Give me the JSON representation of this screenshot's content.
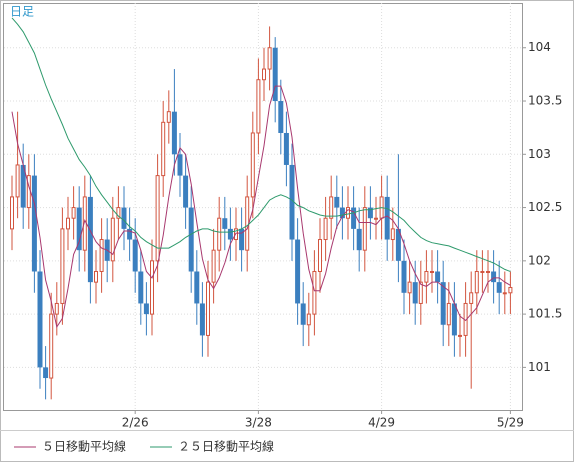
{
  "chart_data": {
    "type": "candlestick",
    "title": "日足",
    "categories": [
      null,
      null,
      null,
      null,
      null,
      null,
      null,
      null,
      null,
      null,
      null,
      null,
      null,
      null,
      null,
      null,
      null,
      null,
      null,
      null,
      null,
      null,
      "2/26",
      null,
      null,
      null,
      null,
      null,
      null,
      null,
      null,
      null,
      null,
      null,
      null,
      null,
      null,
      null,
      null,
      null,
      null,
      null,
      null,
      null,
      "3/28",
      null,
      null,
      null,
      null,
      null,
      null,
      null,
      null,
      null,
      null,
      null,
      null,
      null,
      null,
      null,
      null,
      null,
      null,
      null,
      null,
      null,
      "4/29",
      null,
      null,
      null,
      null,
      null,
      null,
      null,
      null,
      null,
      null,
      null,
      null,
      null,
      null,
      null,
      null,
      null,
      null,
      null,
      null,
      null,
      null,
      "5/29"
    ],
    "open": [
      102.3,
      102.6,
      102.9,
      102.5,
      102.8,
      101.9,
      101.0,
      100.9,
      101.5,
      101.6,
      102.3,
      102.4,
      102.5,
      102.1,
      102.6,
      101.8,
      101.9,
      102.2,
      102.0,
      102.4,
      102.5,
      102.3,
      102.2,
      101.9,
      101.6,
      101.5,
      102.0,
      102.8,
      103.3,
      103.4,
      103.0,
      102.8,
      102.5,
      101.9,
      101.6,
      101.3,
      101.8,
      102.1,
      102.4,
      102.3,
      102.2,
      102.3,
      102.1,
      102.6,
      103.2,
      103.7,
      103.8,
      104.0,
      103.5,
      103.2,
      102.9,
      102.2,
      101.6,
      101.4,
      101.5,
      101.9,
      102.2,
      102.4,
      102.6,
      102.5,
      102.4,
      102.5,
      102.3,
      102.1,
      102.5,
      102.4,
      102.4,
      102.6,
      102.2,
      102.3,
      102.0,
      101.7,
      101.8,
      101.6,
      101.8,
      101.9,
      101.9,
      101.8,
      101.4,
      101.6,
      101.3,
      101.3,
      101.6,
      101.7,
      101.9,
      101.9,
      101.9,
      101.8,
      101.7,
      101.7
    ],
    "high": [
      102.8,
      103.4,
      103.1,
      103.0,
      103.0,
      102.1,
      101.2,
      101.7,
      101.8,
      102.5,
      102.6,
      102.7,
      102.7,
      102.8,
      102.8,
      102.1,
      102.4,
      102.4,
      102.6,
      102.7,
      102.7,
      102.5,
      102.4,
      102.1,
      101.8,
      102.2,
      103.0,
      103.5,
      103.6,
      103.8,
      103.2,
      103.0,
      102.7,
      102.1,
      101.8,
      102.0,
      102.3,
      102.6,
      102.6,
      102.5,
      102.5,
      102.5,
      102.8,
      103.4,
      103.9,
      104.0,
      104.2,
      104.1,
      103.7,
      103.4,
      103.1,
      102.4,
      101.8,
      101.7,
      102.1,
      102.4,
      102.6,
      102.8,
      102.8,
      102.7,
      102.7,
      102.7,
      102.5,
      102.7,
      102.7,
      102.6,
      102.8,
      102.8,
      102.5,
      103.0,
      102.2,
      102.0,
      102.0,
      102.0,
      102.1,
      102.1,
      102.1,
      102.0,
      101.8,
      101.8,
      101.5,
      101.8,
      101.9,
      102.1,
      102.1,
      102.1,
      102.1,
      102.0,
      101.9,
      101.9
    ],
    "low": [
      102.1,
      102.4,
      102.3,
      102.3,
      101.7,
      100.8,
      100.7,
      100.7,
      101.3,
      101.4,
      102.1,
      102.2,
      101.9,
      101.9,
      101.6,
      101.6,
      101.7,
      101.8,
      101.8,
      102.2,
      102.1,
      102.0,
      101.7,
      101.4,
      101.3,
      101.3,
      101.8,
      102.6,
      103.1,
      102.8,
      102.6,
      102.3,
      101.7,
      101.4,
      101.1,
      101.1,
      101.6,
      101.9,
      102.1,
      102.0,
      102.0,
      101.9,
      101.9,
      102.4,
      103.0,
      103.5,
      103.6,
      103.3,
      103.0,
      102.7,
      102.0,
      101.4,
      101.2,
      101.2,
      101.3,
      101.7,
      102.0,
      102.2,
      102.3,
      102.2,
      102.2,
      102.1,
      101.9,
      101.9,
      102.2,
      102.2,
      102.2,
      102.0,
      102.0,
      101.8,
      101.5,
      101.5,
      101.4,
      101.4,
      101.6,
      101.7,
      101.6,
      101.2,
      101.2,
      101.1,
      101.1,
      101.1,
      100.8,
      101.5,
      101.7,
      101.7,
      101.6,
      101.5,
      101.5,
      101.5
    ],
    "close": [
      102.6,
      102.9,
      102.5,
      102.8,
      101.9,
      101.0,
      100.9,
      101.5,
      101.6,
      102.3,
      102.4,
      102.5,
      102.1,
      102.6,
      101.8,
      101.9,
      102.2,
      102.0,
      102.4,
      102.5,
      102.3,
      102.2,
      101.9,
      101.6,
      101.5,
      102.0,
      102.8,
      103.3,
      103.4,
      103.0,
      102.8,
      102.5,
      101.9,
      101.6,
      101.3,
      101.8,
      102.1,
      102.4,
      102.3,
      102.2,
      102.3,
      102.1,
      102.6,
      103.2,
      103.7,
      103.8,
      104.0,
      103.5,
      103.2,
      102.9,
      102.2,
      101.6,
      101.4,
      101.5,
      101.9,
      102.2,
      102.4,
      102.6,
      102.5,
      102.4,
      102.5,
      102.3,
      102.1,
      102.5,
      102.4,
      102.4,
      102.6,
      102.2,
      102.3,
      102.0,
      101.7,
      101.8,
      101.6,
      101.8,
      101.9,
      101.9,
      101.8,
      101.4,
      101.6,
      101.3,
      101.3,
      101.6,
      101.7,
      101.9,
      101.9,
      101.9,
      101.8,
      101.7,
      101.7,
      101.75
    ],
    "up_color": "#d2553f",
    "down_color": "#3b7fbf",
    "lines": [
      {
        "name": "５日移動平均線",
        "color": "#a8386e",
        "values": [
          103.4,
          103.1,
          102.9,
          102.7,
          102.54,
          102.22,
          101.82,
          101.62,
          101.38,
          101.46,
          101.74,
          102.06,
          102.18,
          102.38,
          102.28,
          102.18,
          102.12,
          102.1,
          102.06,
          102.2,
          102.28,
          102.28,
          102.26,
          102.1,
          101.9,
          101.84,
          101.96,
          102.24,
          102.6,
          102.9,
          103.06,
          103.0,
          102.72,
          102.36,
          102.02,
          101.82,
          101.74,
          101.84,
          101.98,
          102.16,
          102.26,
          102.26,
          102.3,
          102.48,
          102.78,
          103.08,
          103.46,
          103.64,
          103.64,
          103.48,
          103.16,
          102.68,
          102.26,
          101.92,
          101.72,
          101.72,
          101.88,
          102.12,
          102.32,
          102.42,
          102.48,
          102.46,
          102.36,
          102.36,
          102.36,
          102.34,
          102.4,
          102.42,
          102.38,
          102.3,
          102.16,
          102.0,
          101.88,
          101.78,
          101.76,
          101.8,
          101.8,
          101.76,
          101.72,
          101.6,
          101.48,
          101.44,
          101.5,
          101.56,
          101.68,
          101.8,
          101.84,
          101.84,
          101.8,
          101.77
        ]
      },
      {
        "name": "２５日移動平均線",
        "color": "#2e9a6c",
        "values": [
          104.28,
          104.22,
          104.15,
          104.05,
          103.95,
          103.8,
          103.65,
          103.52,
          103.4,
          103.28,
          103.15,
          103.05,
          102.95,
          102.88,
          102.8,
          102.7,
          102.62,
          102.55,
          102.48,
          102.42,
          102.38,
          102.32,
          102.28,
          102.22,
          102.18,
          102.15,
          102.12,
          102.12,
          102.12,
          102.15,
          102.18,
          102.22,
          102.25,
          102.28,
          102.3,
          102.3,
          102.28,
          102.27,
          102.27,
          102.27,
          102.28,
          102.3,
          102.33,
          102.38,
          102.43,
          102.5,
          102.57,
          102.6,
          102.62,
          102.6,
          102.57,
          102.52,
          102.5,
          102.47,
          102.45,
          102.43,
          102.42,
          102.42,
          102.42,
          102.43,
          102.44,
          102.45,
          102.47,
          102.48,
          102.48,
          102.49,
          102.5,
          102.49,
          102.46,
          102.42,
          102.38,
          102.32,
          102.27,
          102.22,
          102.19,
          102.17,
          102.16,
          102.15,
          102.14,
          102.12,
          102.1,
          102.08,
          102.06,
          102.04,
          102.02,
          102.0,
          101.98,
          101.95,
          101.92,
          101.9
        ]
      }
    ],
    "ylim": [
      100.6,
      104.42
    ],
    "yticks": [
      101,
      101.5,
      102,
      102.5,
      103,
      103.5,
      104
    ],
    "grid": true
  }
}
